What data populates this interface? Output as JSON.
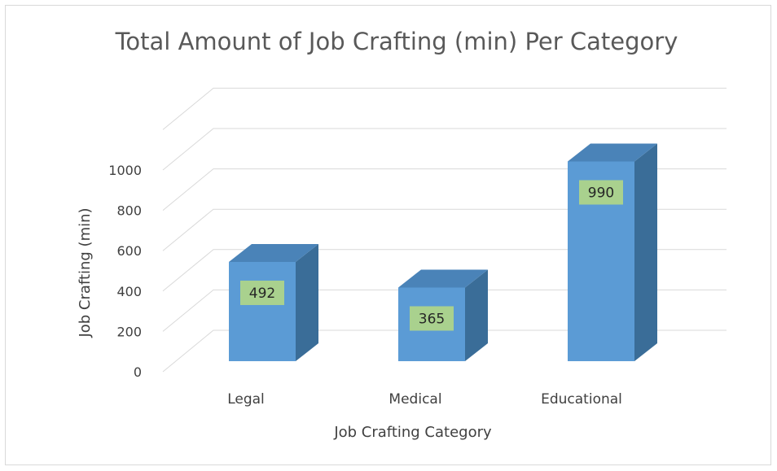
{
  "chart_data": {
    "type": "bar",
    "style": "3d-column",
    "title": "Total Amount of Job Crafting (min) Per Category",
    "xlabel": "Job Crafting Category",
    "ylabel": "Job Crafting (min)",
    "categories": [
      "Legal",
      "Medical",
      "Educational"
    ],
    "values": [
      492,
      365,
      990
    ],
    "data_labels": [
      "492",
      "365",
      "990"
    ],
    "ylim": [
      0,
      1000
    ],
    "yticks": [
      "0",
      "200",
      "400",
      "600",
      "800",
      "1000"
    ],
    "grid": true,
    "legend": "none",
    "colors": {
      "bar_front": "#5b9bd5",
      "bar_side": "#3a6d98",
      "bar_top": "#4a83b8",
      "label_box": "#a9d18e",
      "gridline": "#d9d9d9"
    }
  }
}
